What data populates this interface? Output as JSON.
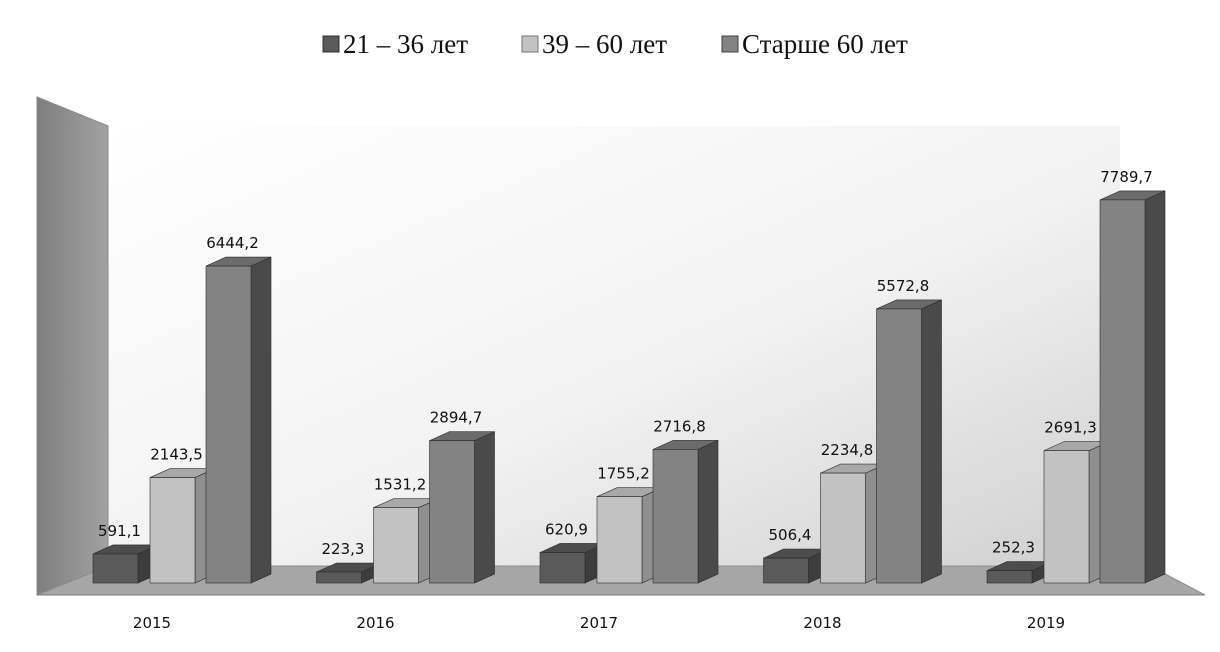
{
  "chart_data": {
    "type": "bar",
    "title": "",
    "xlabel": "",
    "ylabel": "",
    "categories": [
      "2015",
      "2016",
      "2017",
      "2018",
      "2019"
    ],
    "series": [
      {
        "name": "21 – 36 лет",
        "values": [
          591.1,
          223.3,
          620.9,
          506.4,
          252.3
        ],
        "labels": [
          "591,1",
          "223,3",
          "620,9",
          "506,4",
          "252,3"
        ],
        "color": "#5a5a5a"
      },
      {
        "name": "39 – 60 лет",
        "values": [
          2143.5,
          1531.2,
          1755.2,
          2234.8,
          2691.3
        ],
        "labels": [
          "2143,5",
          "1531,2",
          "1755,2",
          "2234,8",
          "2691,3"
        ],
        "color": "#c2c2c2"
      },
      {
        "name": "Старше 60 лет",
        "values": [
          6444.2,
          2894.7,
          2716.8,
          5572.8,
          7789.7
        ],
        "labels": [
          "6444,2",
          "2894,7",
          "2716,8",
          "5572,8",
          "7789,7"
        ],
        "color": "#838383"
      }
    ],
    "ylim": [
      0,
      8000
    ],
    "grid": false,
    "legend": "top",
    "style": "3d-columns"
  }
}
